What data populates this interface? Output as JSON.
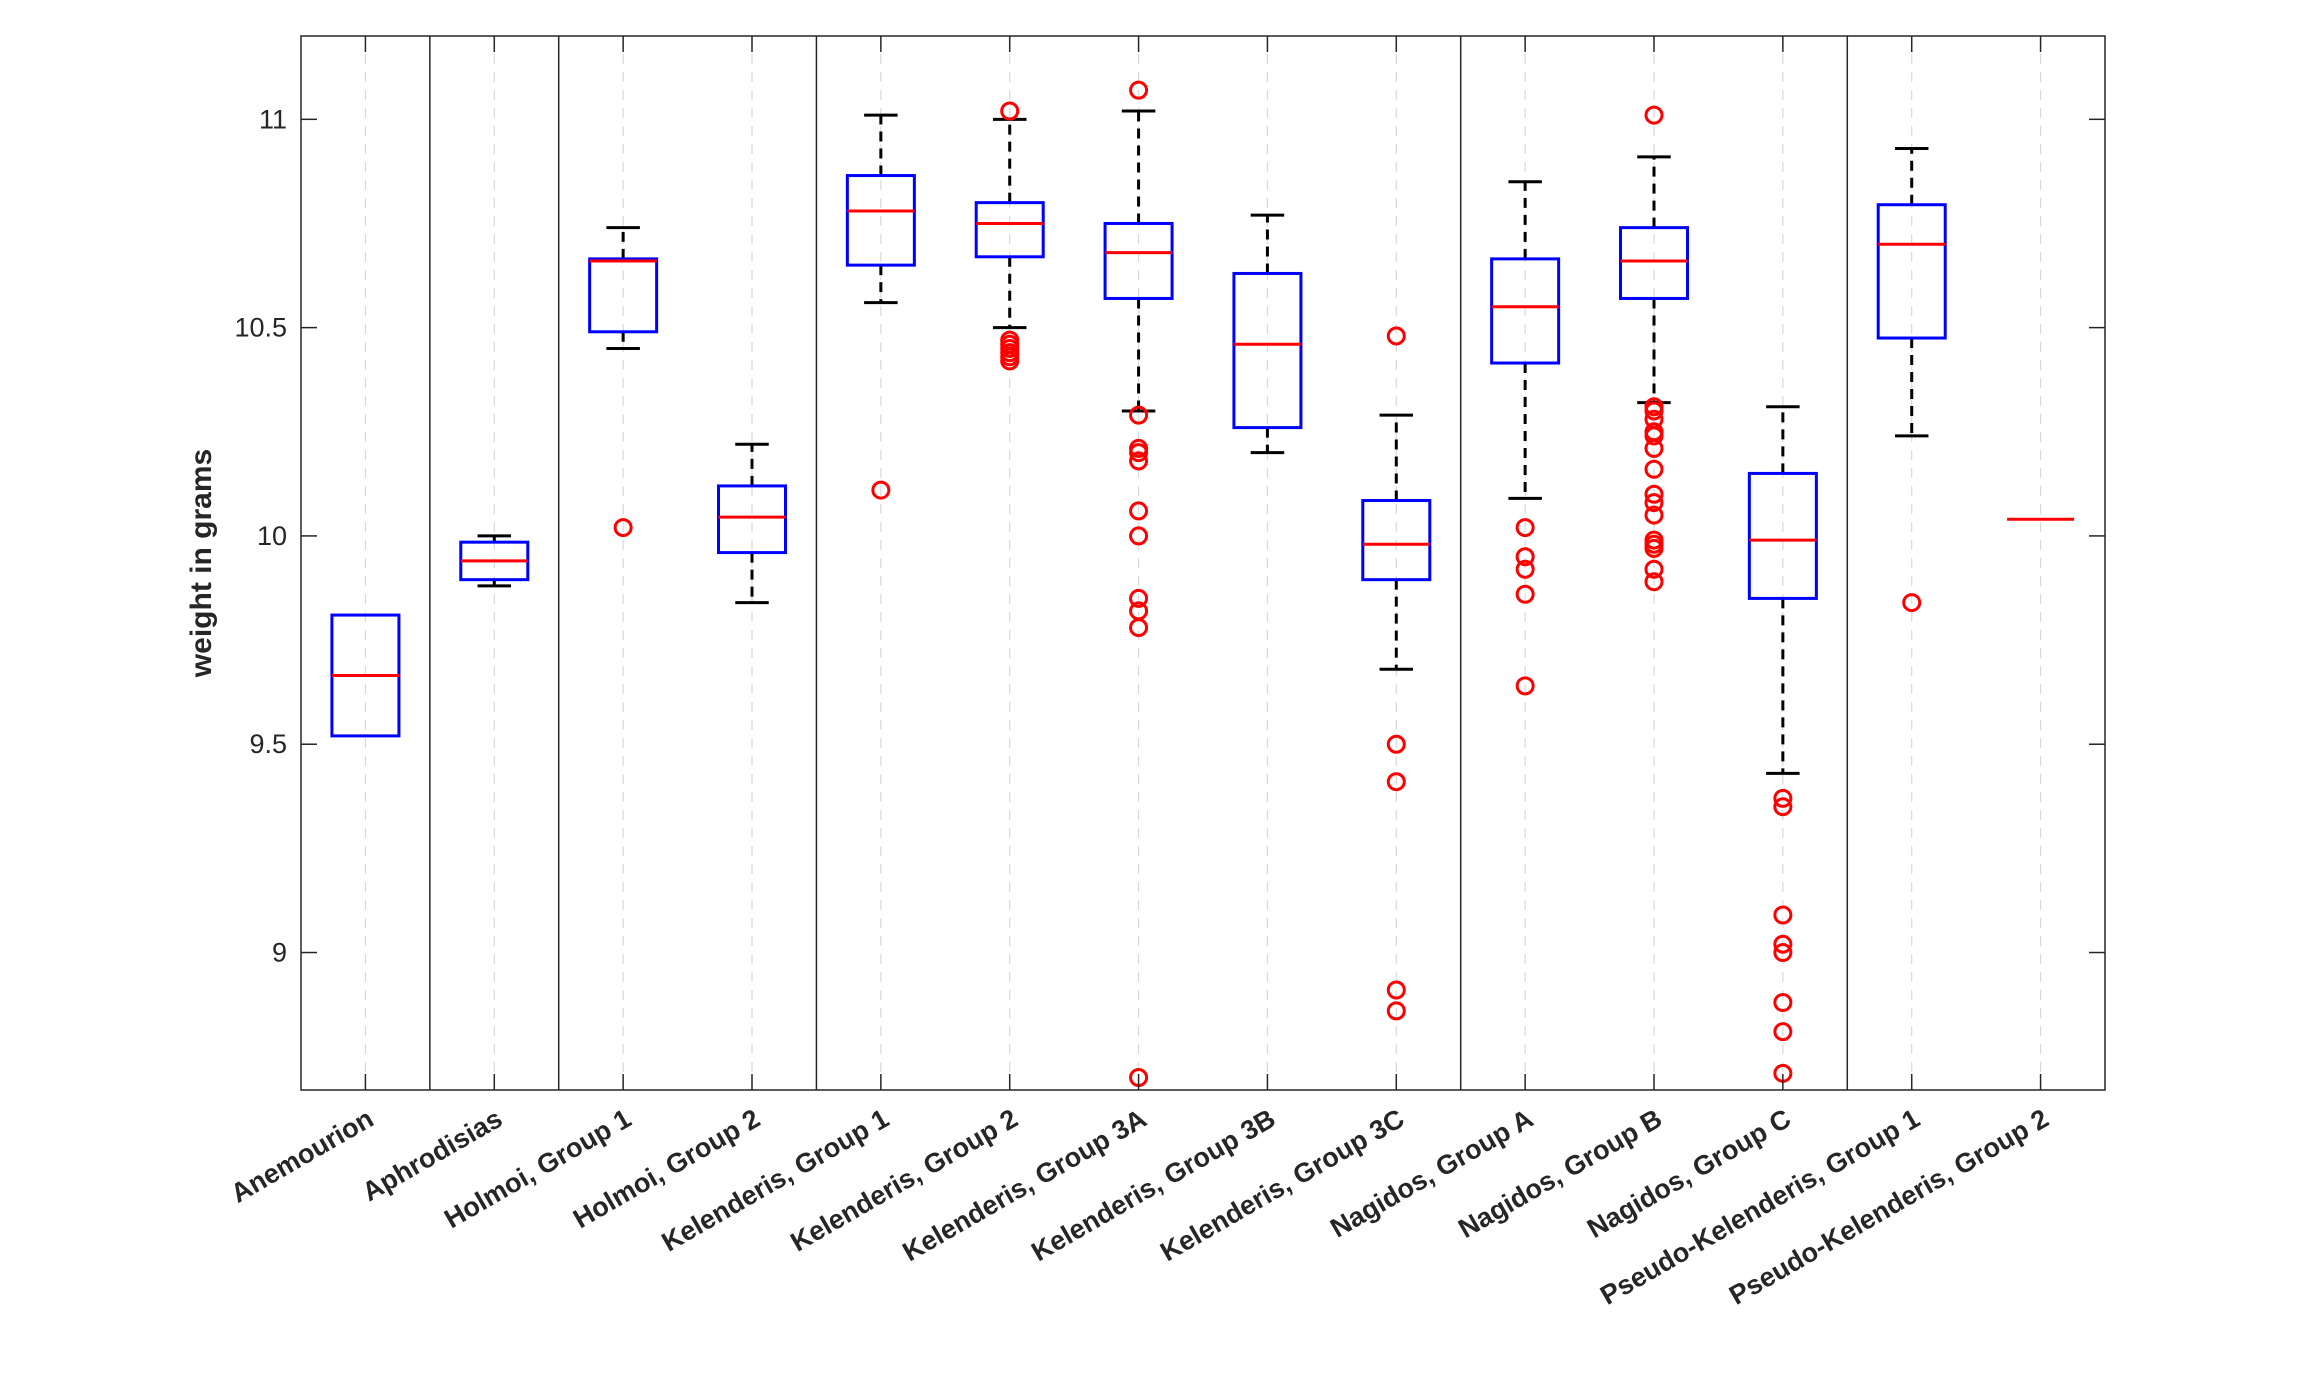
{
  "chart_data": {
    "type": "boxplot",
    "ylabel": "weight in grams",
    "ylim": [
      8.67,
      11.2
    ],
    "yticks": [
      9,
      9.5,
      10,
      10.5,
      11
    ],
    "ytick_labels": [
      "9",
      "9.5",
      "10",
      "10.5",
      "11"
    ],
    "grid": "x-dashed",
    "categories": [
      "Anemourion",
      "Aphrodisias",
      "Holmoi, Group 1",
      "Holmoi, Group 2",
      "Kelenderis, Group 1",
      "Kelenderis, Group 2",
      "Kelenderis, Group 3A",
      "Kelenderis, Group 3B",
      "Kelenderis, Group 3C",
      "Nagidos, Group A",
      "Nagidos, Group B",
      "Nagidos, Group C",
      "Pseudo-Kelenderis, Group 1",
      "Pseudo-Kelenderis, Group 2"
    ],
    "group_separators_after": [
      1,
      2,
      4,
      9,
      12
    ],
    "colors": {
      "box": "#0000ff",
      "median": "#ff0000",
      "whisker": "#000000",
      "outlier": "#ff0000",
      "separator": "#262626"
    },
    "boxes": [
      {
        "q1": 9.52,
        "median": 9.665,
        "q3": 9.81,
        "whisker_low": null,
        "whisker_high": null,
        "outliers": []
      },
      {
        "q1": 9.895,
        "median": 9.94,
        "q3": 9.985,
        "whisker_low": 9.88,
        "whisker_high": 10.0,
        "outliers": []
      },
      {
        "q1": 10.49,
        "median": 10.66,
        "q3": 10.665,
        "whisker_low": 10.45,
        "whisker_high": 10.74,
        "outliers": [
          10.02
        ]
      },
      {
        "q1": 9.96,
        "median": 10.045,
        "q3": 10.12,
        "whisker_low": 9.84,
        "whisker_high": 10.22,
        "outliers": []
      },
      {
        "q1": 10.65,
        "median": 10.78,
        "q3": 10.865,
        "whisker_low": 10.56,
        "whisker_high": 11.01,
        "outliers": [
          10.11
        ]
      },
      {
        "q1": 10.67,
        "median": 10.75,
        "q3": 10.8,
        "whisker_low": 10.5,
        "whisker_high": 11.0,
        "outliers": [
          10.42,
          10.43,
          10.44,
          10.45,
          10.46,
          10.47,
          11.02
        ]
      },
      {
        "q1": 10.57,
        "median": 10.68,
        "q3": 10.75,
        "whisker_low": 10.3,
        "whisker_high": 11.02,
        "outliers": [
          8.7,
          9.78,
          9.82,
          9.85,
          10.0,
          10.06,
          10.18,
          10.2,
          10.21,
          10.29,
          11.07
        ]
      },
      {
        "q1": 10.26,
        "median": 10.46,
        "q3": 10.63,
        "whisker_low": 10.2,
        "whisker_high": 10.77,
        "outliers": []
      },
      {
        "q1": 9.895,
        "median": 9.98,
        "q3": 10.085,
        "whisker_low": 9.68,
        "whisker_high": 10.29,
        "outliers": [
          8.86,
          8.91,
          9.41,
          9.5,
          10.48
        ]
      },
      {
        "q1": 10.415,
        "median": 10.55,
        "q3": 10.665,
        "whisker_low": 10.09,
        "whisker_high": 10.85,
        "outliers": [
          9.64,
          9.86,
          9.92,
          9.95,
          10.02
        ]
      },
      {
        "q1": 10.57,
        "median": 10.66,
        "q3": 10.74,
        "whisker_low": 10.32,
        "whisker_high": 10.91,
        "outliers": [
          9.89,
          9.92,
          9.97,
          9.98,
          9.99,
          10.05,
          10.08,
          10.1,
          10.16,
          10.21,
          10.24,
          10.25,
          10.28,
          10.3,
          10.31,
          11.01
        ]
      },
      {
        "q1": 9.85,
        "median": 9.99,
        "q3": 10.15,
        "whisker_low": 9.43,
        "whisker_high": 10.31,
        "outliers": [
          8.71,
          8.81,
          8.88,
          9.0,
          9.02,
          9.09,
          9.35,
          9.37
        ]
      },
      {
        "q1": 10.475,
        "median": 10.7,
        "q3": 10.795,
        "whisker_low": 10.24,
        "whisker_high": 10.93,
        "outliers": [
          9.84
        ]
      },
      {
        "q1": null,
        "median": 10.04,
        "q3": null,
        "whisker_low": null,
        "whisker_high": null,
        "outliers": []
      }
    ]
  }
}
